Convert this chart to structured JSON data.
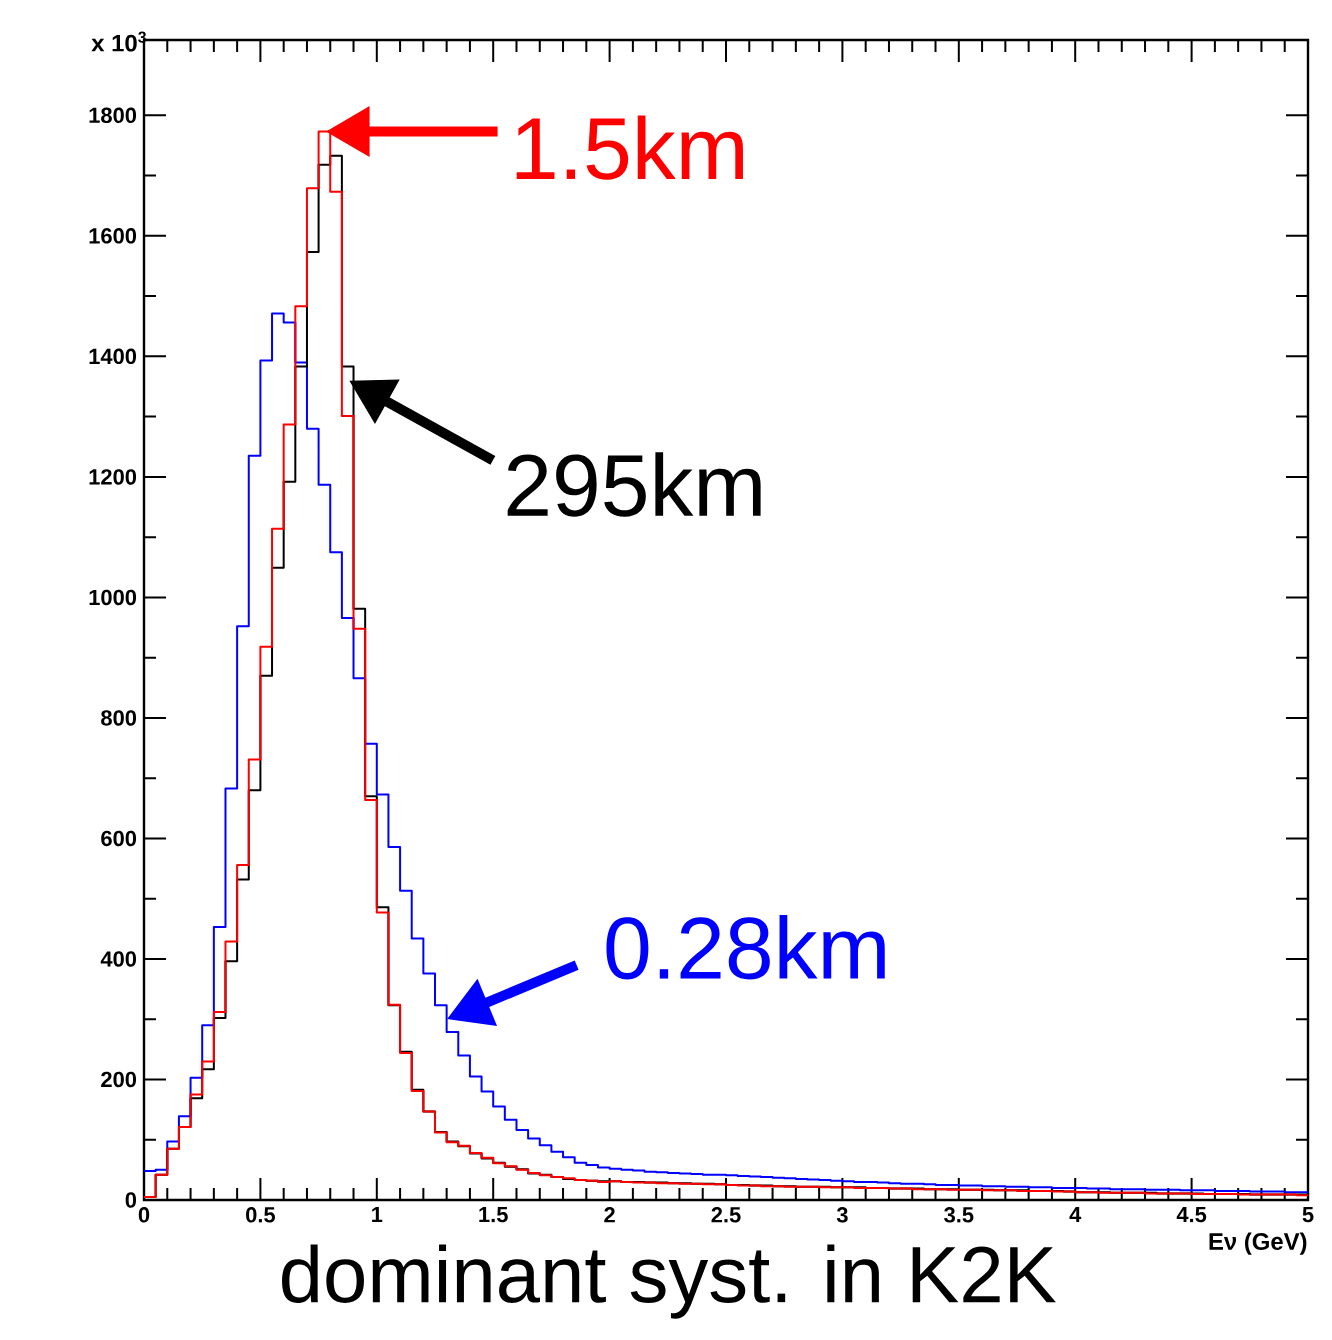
{
  "chart_data": {
    "type": "histogram",
    "ylabel": "x 10$^{3}$",
    "xlabel": "Eν (GeV)",
    "bins": [
      0,
      0.05,
      0.1,
      0.15,
      0.2,
      0.25,
      0.3,
      0.35,
      0.4,
      0.45,
      0.5,
      0.55,
      0.6,
      0.65,
      0.7,
      0.75,
      0.8,
      0.85,
      0.9,
      0.95,
      1.0,
      1.05,
      1.1,
      1.15,
      1.2,
      1.25,
      1.3,
      1.35,
      1.4,
      1.45,
      1.5,
      1.55,
      1.6,
      1.65,
      1.7,
      1.75,
      1.8,
      1.85,
      1.9,
      1.95,
      2.0,
      2.05,
      2.1,
      2.15,
      2.2,
      2.25,
      2.3,
      2.35,
      2.4,
      2.45,
      2.5,
      2.55,
      2.6,
      2.65,
      2.7,
      2.75,
      2.8,
      2.85,
      2.9,
      2.95,
      3.0,
      3.05,
      3.1,
      3.15,
      3.2,
      3.25,
      3.3,
      3.35,
      3.4,
      3.45,
      3.5,
      3.55,
      3.6,
      3.65,
      3.7,
      3.75,
      3.8,
      3.85,
      3.9,
      3.95,
      4.0,
      4.05,
      4.1,
      4.15,
      4.2,
      4.25,
      4.3,
      4.35,
      4.4,
      4.45,
      4.5,
      4.55,
      4.6,
      4.65,
      4.7,
      4.75,
      4.8,
      4.85,
      4.9,
      4.95,
      5.0
    ],
    "series": [
      {
        "color": "#0000ff",
        "values": [
          48,
          50,
          97,
          139,
          203,
          290,
          453,
          683,
          952,
          1235,
          1393,
          1471,
          1456,
          1390,
          1280,
          1187,
          1075,
          966,
          866,
          757,
          673,
          586,
          513,
          434,
          376,
          323,
          279,
          240,
          205,
          180,
          155,
          133,
          116,
          102,
          91,
          80,
          71,
          62,
          58,
          54,
          52,
          50,
          49,
          47,
          46,
          45,
          44,
          43,
          42,
          42,
          41,
          40,
          39,
          38,
          37,
          36,
          35,
          34,
          33,
          32,
          31,
          30,
          30,
          29,
          28,
          27,
          27,
          26,
          25,
          25,
          24,
          24,
          23,
          23,
          22,
          22,
          21,
          21,
          20,
          20,
          20,
          19,
          19,
          18,
          18,
          18,
          17,
          17,
          17,
          16,
          16,
          16,
          15,
          15,
          15,
          14,
          14,
          14,
          13,
          13
        ]
      },
      {
        "color": "#000000",
        "values": [
          5,
          42,
          85,
          121,
          169,
          217,
          302,
          396,
          532,
          680,
          870,
          1049,
          1192,
          1383,
          1573,
          1718,
          1733,
          1383,
          981,
          670,
          486,
          323,
          246,
          183,
          147,
          113,
          97,
          89,
          77,
          69,
          62,
          55,
          51,
          44,
          42,
          38,
          35,
          33,
          32,
          31,
          31,
          30,
          30,
          29,
          29,
          28,
          28,
          27,
          27,
          26,
          25,
          25,
          24,
          24,
          23,
          23,
          22,
          22,
          22,
          21,
          21,
          21,
          20,
          20,
          19,
          19,
          19,
          18,
          18,
          18,
          17,
          17,
          17,
          16,
          16,
          16,
          15,
          15,
          15,
          14,
          13,
          13,
          13,
          12,
          12,
          12,
          12,
          11,
          11,
          11,
          11,
          10,
          10,
          10,
          10,
          9,
          9,
          9,
          9,
          9
        ]
      },
      {
        "color": "#ff0000",
        "values": [
          5,
          42,
          85,
          121,
          175,
          230,
          312,
          429,
          556,
          731,
          918,
          1114,
          1287,
          1483,
          1679,
          1773,
          1673,
          1301,
          948,
          664,
          477,
          324,
          244,
          181,
          147,
          112,
          96,
          90,
          78,
          70,
          61,
          56,
          50,
          45,
          41,
          38,
          36,
          33,
          32,
          30,
          31,
          30,
          29,
          29,
          28,
          28,
          27,
          27,
          26,
          26,
          25,
          24,
          24,
          23,
          23,
          22,
          22,
          22,
          21,
          21,
          21,
          20,
          20,
          20,
          19,
          19,
          18,
          18,
          18,
          17,
          17,
          17,
          16,
          16,
          16,
          15,
          15,
          15,
          14,
          14,
          13,
          13,
          12,
          12,
          12,
          12,
          11,
          11,
          11,
          11,
          10,
          10,
          10,
          10,
          9,
          9,
          9,
          9,
          9,
          8
        ]
      }
    ],
    "annotations": [
      {
        "text": "1.5km",
        "x": 0.78,
        "y": 1773
      },
      {
        "text": "295km",
        "x": 0.88,
        "y": 1360
      },
      {
        "text": "0.28km",
        "x": 1.3,
        "y": 300
      },
      "dominant syst. in K2K"
    ],
    "xlim": [
      0,
      5
    ],
    "ylim": [
      0,
      1925
    ],
    "xticks": [
      0,
      0.5,
      1,
      1.5,
      2,
      2.5,
      3,
      3.5,
      4,
      4.5,
      5
    ],
    "yticks": [
      0,
      200,
      400,
      600,
      800,
      1000,
      1200,
      1400,
      1600,
      1800
    ],
    "grid": false
  }
}
